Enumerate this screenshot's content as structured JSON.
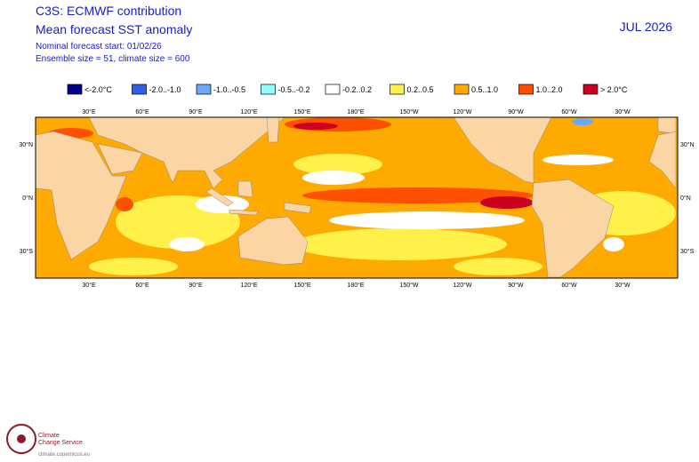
{
  "header": {
    "line1": "C3S: ECMWF contribution",
    "line2": "Mean forecast SST anomaly",
    "line3": "Nominal forecast start: 01/02/26",
    "line4": "Ensemble size = 51, climate size = 600",
    "date": "JUL 2026"
  },
  "legend": [
    {
      "label": "<-2.0°C",
      "color": "#00008b"
    },
    {
      "label": "-2.0..-1.0",
      "color": "#2f5fe8"
    },
    {
      "label": "-1.0..-0.5",
      "color": "#6aa8ff"
    },
    {
      "label": "-0.5..-0.2",
      "color": "#8ffcff"
    },
    {
      "label": "-0.2..0.2",
      "color": "#ffffff"
    },
    {
      "label": "0.2..0.5",
      "color": "#fff04a"
    },
    {
      "label": "0.5..1.0",
      "color": "#ffaa00"
    },
    {
      "label": "1.0..2.0",
      "color": "#ff5000"
    },
    {
      "label": "> 2.0°C",
      "color": "#cc0020"
    }
  ],
  "map": {
    "longitudes": [
      "30°E",
      "60°E",
      "90°E",
      "120°E",
      "150°E",
      "180°E",
      "150°W",
      "120°W",
      "90°W",
      "60°W",
      "30°W"
    ],
    "latitudes": [
      "30°N",
      "0°N",
      "30°S"
    ]
  },
  "logo": {
    "name1": "Climate",
    "name2": "Change Service",
    "url": "climate.copernicus.eu"
  }
}
